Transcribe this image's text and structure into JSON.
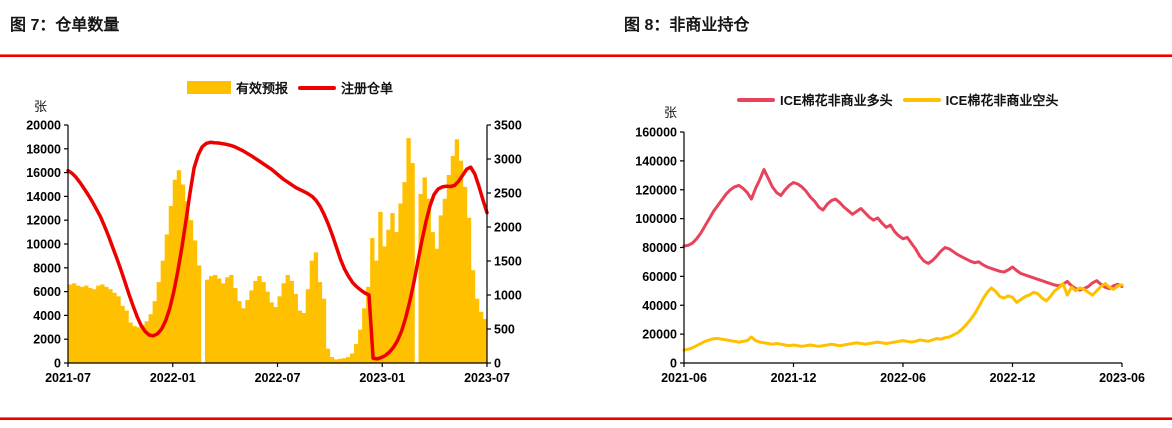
{
  "chart_data": [
    {
      "type": "bar",
      "title": "图 7：仓单数量",
      "unit_label": "张",
      "x_ticks": [
        "2021-07",
        "2022-01",
        "2022-07",
        "2023-01",
        "2023-07"
      ],
      "left_axis": {
        "min": 0,
        "max": 20000,
        "step": 2000
      },
      "right_axis": {
        "min": 0,
        "max": 3500,
        "step": 500
      },
      "legend_position": "top-center",
      "grid": false,
      "series": [
        {
          "name": "有效预报",
          "type": "bar",
          "axis": "left",
          "color": "#FFC000",
          "values": [
            6600,
            6700,
            6500,
            6400,
            6500,
            6300,
            6200,
            6500,
            6600,
            6400,
            6200,
            5900,
            5600,
            4800,
            4400,
            3400,
            3100,
            3000,
            3200,
            3500,
            4100,
            5200,
            6800,
            8600,
            10800,
            13200,
            15400,
            16200,
            15000,
            13600,
            12000,
            10300,
            8200,
            null,
            7000,
            7300,
            7400,
            7100,
            6700,
            7200,
            7400,
            6300,
            5200,
            4600,
            5300,
            6100,
            6900,
            7300,
            6800,
            6000,
            5100,
            4700,
            5600,
            6700,
            7400,
            6900,
            5800,
            4400,
            4200,
            6200,
            8600,
            9300,
            6800,
            5400,
            1200,
            500,
            300,
            350,
            400,
            500,
            800,
            1600,
            2800,
            4600,
            6400,
            10500,
            8600,
            12700,
            9800,
            11200,
            12600,
            11000,
            13400,
            15200,
            18900,
            16800,
            null,
            14200,
            15600,
            13800,
            11000,
            9600,
            12400,
            13800,
            15800,
            17400,
            18800,
            17000,
            14800,
            12200,
            7800,
            5400,
            4300,
            3700
          ]
        },
        {
          "name": "注册仓单",
          "type": "line",
          "axis": "right",
          "color": "#EE0000",
          "width": 3.5,
          "values": [
            2830,
            2790,
            2730,
            2650,
            2560,
            2470,
            2370,
            2260,
            2150,
            2010,
            1860,
            1700,
            1540,
            1370,
            1190,
            1010,
            840,
            680,
            550,
            460,
            410,
            400,
            430,
            500,
            620,
            800,
            1050,
            1350,
            1700,
            2100,
            2500,
            2870,
            3060,
            3180,
            3230,
            3245,
            3240,
            3235,
            3225,
            3215,
            3200,
            3180,
            3150,
            3120,
            3085,
            3050,
            3010,
            2970,
            2930,
            2890,
            2850,
            2800,
            2750,
            2700,
            2660,
            2620,
            2580,
            2550,
            2520,
            2490,
            2450,
            2390,
            2300,
            2180,
            2040,
            1880,
            1700,
            1520,
            1380,
            1270,
            1180,
            1120,
            1070,
            1030,
            1000,
            70,
            60,
            80,
            110,
            160,
            230,
            330,
            470,
            660,
            900,
            1180,
            1490,
            1800,
            2080,
            2310,
            2480,
            2560,
            2590,
            2600,
            2595,
            2610,
            2670,
            2760,
            2850,
            2880,
            2780,
            2600,
            2400,
            2210
          ]
        }
      ]
    },
    {
      "type": "line",
      "title": "图 8：非商业持仓",
      "unit_label": "张",
      "x_ticks": [
        "2021-06",
        "2021-12",
        "2022-06",
        "2022-12",
        "2023-06"
      ],
      "left_axis": {
        "min": 0,
        "max": 160000,
        "step": 20000
      },
      "legend_position": "top-center",
      "grid": false,
      "series": [
        {
          "name": "ICE棉花非商业多头",
          "type": "line",
          "axis": "left",
          "color": "#E8435A",
          "width": 3,
          "values": [
            81000,
            81500,
            83000,
            86000,
            90000,
            95000,
            100000,
            105000,
            109000,
            113000,
            117000,
            120000,
            122000,
            123000,
            121000,
            118000,
            113500,
            121000,
            127000,
            134000,
            128000,
            122000,
            118000,
            116000,
            120000,
            123000,
            125000,
            124000,
            122000,
            119000,
            115000,
            112000,
            108000,
            106000,
            110000,
            112500,
            113500,
            111000,
            108000,
            105500,
            103000,
            105000,
            107000,
            104000,
            101000,
            99000,
            100500,
            97000,
            94000,
            95500,
            91000,
            88000,
            86000,
            87000,
            83000,
            79000,
            74000,
            70500,
            69000,
            71000,
            74000,
            77500,
            80000,
            79000,
            77000,
            75000,
            73500,
            72000,
            70500,
            69500,
            70000,
            68000,
            66500,
            65500,
            64500,
            63500,
            63000,
            64500,
            66500,
            64000,
            62000,
            61000,
            60000,
            59000,
            58000,
            57000,
            56000,
            55000,
            54000,
            53500,
            54500,
            56500,
            53500,
            51500,
            50500,
            51500,
            53000,
            55500,
            57000,
            54500,
            52500,
            51500,
            53500,
            54500,
            53000
          ]
        },
        {
          "name": "ICE棉花非商业空头",
          "type": "line",
          "axis": "left",
          "color": "#FFC000",
          "width": 3,
          "values": [
            9000,
            9500,
            10500,
            12000,
            13500,
            15000,
            16000,
            16800,
            17000,
            16500,
            16000,
            15500,
            15000,
            14500,
            15000,
            15500,
            18000,
            15500,
            14500,
            14000,
            13500,
            13000,
            13500,
            13000,
            12500,
            12000,
            12500,
            12000,
            11500,
            12000,
            12500,
            12000,
            11500,
            12000,
            12500,
            13000,
            12500,
            12000,
            12500,
            13000,
            13500,
            14000,
            13500,
            13000,
            13500,
            14000,
            14500,
            14000,
            13500,
            14000,
            14500,
            15000,
            15500,
            15000,
            14500,
            15000,
            16000,
            15500,
            15000,
            16000,
            17000,
            16500,
            17500,
            18000,
            19500,
            21000,
            23500,
            26500,
            30000,
            34000,
            39000,
            44500,
            49000,
            52000,
            49500,
            46000,
            45000,
            46500,
            45500,
            42000,
            44000,
            46000,
            47000,
            49000,
            48000,
            45000,
            43000,
            46000,
            50000,
            52000,
            55000,
            47000,
            52500,
            50000,
            52000,
            51000,
            49000,
            47000,
            50000,
            53000,
            55000,
            52500,
            51000,
            53500,
            54000
          ]
        }
      ]
    }
  ]
}
